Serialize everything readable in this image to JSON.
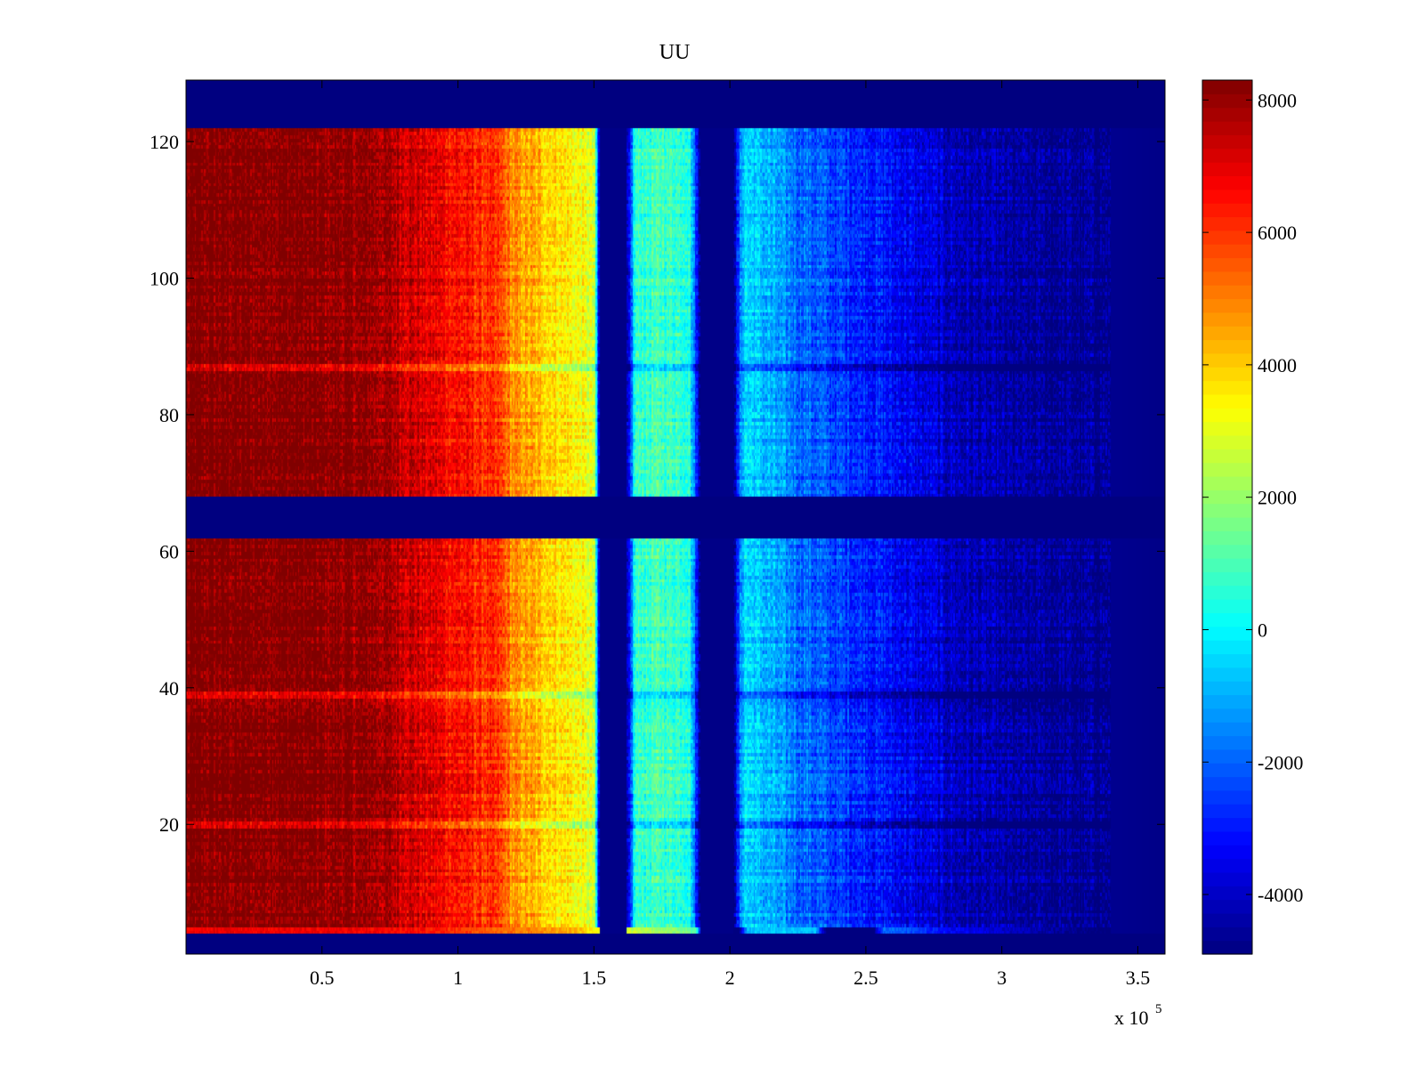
{
  "chart_data": {
    "type": "heatmap",
    "title": "UU",
    "xlabel": "",
    "ylabel": "",
    "x_multiplier_label": "x 10",
    "x_multiplier_exponent": "5",
    "xlim": [
      0,
      360000
    ],
    "ylim": [
      1,
      129
    ],
    "x_ticks": [
      50000,
      100000,
      150000,
      200000,
      250000,
      300000,
      350000
    ],
    "x_tick_labels": [
      "0.5",
      "1",
      "1.5",
      "2",
      "2.5",
      "3",
      "3.5"
    ],
    "y_ticks": [
      20,
      40,
      60,
      80,
      100,
      120
    ],
    "y_tick_labels": [
      "20",
      "40",
      "60",
      "80",
      "100",
      "120"
    ],
    "colorbar": {
      "colormap": "jet",
      "range": [
        -4900,
        8300
      ],
      "ticks": [
        -4000,
        -2000,
        0,
        2000,
        4000,
        6000,
        8000
      ],
      "tick_labels": [
        "-4000",
        "-2000",
        "0",
        "2000",
        "4000",
        "6000",
        "8000"
      ]
    },
    "row_bands": [
      {
        "from": 1,
        "to": 4,
        "state": "empty"
      },
      {
        "from": 4,
        "to": 5,
        "state": "edge"
      },
      {
        "from": 5,
        "to": 62,
        "state": "data"
      },
      {
        "from": 62,
        "to": 68,
        "state": "empty"
      },
      {
        "from": 68,
        "to": 122,
        "state": "data"
      },
      {
        "from": 122,
        "to": 129,
        "state": "empty"
      }
    ],
    "column_profile": {
      "x": [
        0,
        40000,
        70000,
        90000,
        105000,
        115000,
        120000,
        130000,
        140000,
        150000,
        152000,
        153000,
        162000,
        165000,
        175000,
        185000,
        189000,
        190000,
        201000,
        205000,
        215000,
        225000,
        240000,
        260000,
        280000,
        300000,
        360000
      ],
      "values": [
        8300,
        8300,
        8000,
        7000,
        6300,
        5800,
        4800,
        4200,
        3600,
        2800,
        -4800,
        -4800,
        -4800,
        700,
        900,
        700,
        -4800,
        -4800,
        -4800,
        -300,
        -1000,
        -1800,
        -2400,
        -3200,
        -4000,
        -4500,
        -4800
      ]
    },
    "anomaly_rows": [
      39,
      20,
      87
    ]
  }
}
